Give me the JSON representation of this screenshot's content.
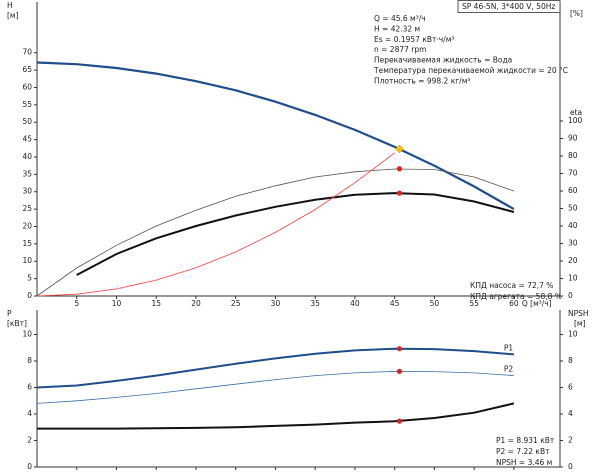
{
  "chart_data": [
    {
      "type": "line",
      "title": "SP 46-5N, 3*400 V, 50Hz",
      "ylabel": "H",
      "yunit": "[м]",
      "y2label": "eta",
      "y2unit": "[%]",
      "xlabel": "Q [м³/ч]",
      "x": [
        0,
        5,
        10,
        15,
        20,
        25,
        30,
        35,
        40,
        45,
        50,
        55,
        60
      ],
      "xlim": [
        0,
        65.8
      ],
      "xticks": [
        5,
        10,
        15,
        20,
        25,
        30,
        35,
        40,
        45,
        50,
        55,
        60
      ],
      "ylim": [
        0,
        84.6
      ],
      "yticks": [
        0,
        5,
        10,
        15,
        20,
        25,
        30,
        35,
        40,
        45,
        50,
        55,
        60,
        65,
        70
      ],
      "y2lim": [
        0,
        168
      ],
      "y2ticks": [
        0,
        10,
        20,
        30,
        40,
        50,
        60,
        70,
        80,
        90,
        100
      ],
      "series": [
        {
          "color": "#1f4e8c",
          "width": 2.2,
          "values": [
            67.2,
            66.7,
            65.6,
            64.0,
            61.8,
            59.2,
            55.9,
            52.1,
            47.8,
            42.9,
            37.5,
            31.5,
            25.0
          ]
        },
        {
          "color": "#555555",
          "width": 0.8,
          "axis": "y2",
          "values": [
            0,
            16,
            29,
            40,
            49,
            57,
            63,
            68,
            71,
            72.6,
            72.3,
            68,
            60
          ]
        },
        {
          "color": "#111111",
          "width": 2,
          "axis": "y2",
          "values": [
            null,
            12,
            24,
            33,
            40,
            46,
            51,
            55,
            57.8,
            58.8,
            58,
            54,
            48
          ]
        },
        {
          "color": "#ff4040",
          "width": 0.8,
          "values": [
            0,
            0.51,
            2.04,
            4.58,
            8.14,
            12.7,
            18.3,
            24.9,
            32.6,
            41.2,
            null,
            null,
            null
          ]
        }
      ],
      "markers": [
        {
          "x": 45.6,
          "y": 42.32,
          "color": "#f5c400",
          "shape": "diamond"
        },
        {
          "x": 45.6,
          "y": 72.7,
          "axis": "y2",
          "color": "#e02020",
          "shape": "dot"
        },
        {
          "x": 45.6,
          "y": 58.8,
          "axis": "y2",
          "color": "#e02020",
          "shape": "dot"
        }
      ],
      "annotations": [
        "Q = 45.6 м³/ч",
        "H = 42.32 м",
        "Es = 0.1957 кВт·ч/м³",
        "n = 2877 rpm",
        "Перекачиваемая жидкость = Вода",
        "Температура перекачиваемой жидкости = 20 °C",
        "Плотность = 998.2 кг/м³"
      ],
      "notes": [
        "КПД насоса = 72,7 %",
        "КПД агрегата = 58,8 %"
      ]
    },
    {
      "type": "line",
      "ylabel": "P",
      "yunit": "[кВт]",
      "y2label": "NPSH",
      "y2unit": "[м]",
      "x": [
        0,
        5,
        10,
        15,
        20,
        25,
        30,
        35,
        40,
        45,
        50,
        55,
        60
      ],
      "xlim": [
        0,
        65.8
      ],
      "xticks": [
        5,
        10,
        15,
        20,
        25,
        30,
        35,
        40,
        45,
        50,
        55,
        60
      ],
      "xtick_labels": false,
      "ylim": [
        0,
        11.85
      ],
      "yticks": [
        0,
        2,
        4,
        6,
        8,
        10
      ],
      "y2lim": [
        0,
        11.85
      ],
      "y2ticks": [
        0,
        2,
        4,
        6,
        8,
        10
      ],
      "series": [
        {
          "name": "P1",
          "color": "#1f4e8c",
          "width": 2,
          "values": [
            6.0,
            6.15,
            6.5,
            6.9,
            7.35,
            7.8,
            8.2,
            8.55,
            8.8,
            8.93,
            8.9,
            8.75,
            8.5
          ]
        },
        {
          "name": "P2",
          "color": "#3a6ea8",
          "width": 0.8,
          "values": [
            4.8,
            5.0,
            5.25,
            5.55,
            5.9,
            6.25,
            6.6,
            6.9,
            7.1,
            7.22,
            7.2,
            7.1,
            6.9
          ]
        },
        {
          "color": "#111111",
          "width": 2,
          "axis": "y2",
          "values": [
            2.9,
            2.9,
            2.9,
            2.92,
            2.95,
            3.0,
            3.1,
            3.2,
            3.35,
            3.45,
            3.7,
            4.1,
            4.8
          ]
        }
      ],
      "markers": [
        {
          "x": 45.6,
          "y": 8.931,
          "color": "#e02020",
          "shape": "dot"
        },
        {
          "x": 45.6,
          "y": 7.22,
          "color": "#e02020",
          "shape": "dot"
        },
        {
          "x": 45.6,
          "y": 3.46,
          "axis": "y2",
          "color": "#e02020",
          "shape": "dot"
        }
      ],
      "notes": [
        "P1 = 8.931 кВт",
        "P2 = 7.22 кВт",
        "NPSH = 3.46 м"
      ]
    }
  ]
}
